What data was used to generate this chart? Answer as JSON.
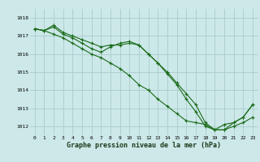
{
  "title": "Graphe pression niveau de la mer (hPa)",
  "bg_color": "#cce8e8",
  "grid_color": "#aacccc",
  "line_color": "#1a6b1a",
  "marker_color": "#1a6b1a",
  "xlim": [
    -0.5,
    23.5
  ],
  "ylim": [
    1011.5,
    1018.5
  ],
  "yticks": [
    1012,
    1013,
    1014,
    1015,
    1016,
    1017,
    1018
  ],
  "xticks": [
    0,
    1,
    2,
    3,
    4,
    5,
    6,
    7,
    8,
    9,
    10,
    11,
    12,
    13,
    14,
    15,
    16,
    17,
    18,
    19,
    20,
    21,
    22,
    23
  ],
  "series": [
    [
      1017.4,
      1017.3,
      1017.6,
      1017.2,
      1017.0,
      1016.8,
      1016.6,
      1016.4,
      1016.5,
      1016.5,
      1016.6,
      1016.5,
      1016.0,
      1015.5,
      1015.0,
      1014.4,
      1013.8,
      1013.2,
      1012.2,
      1011.8,
      1012.1,
      1012.2,
      1012.5,
      1013.2
    ],
    [
      1017.4,
      1017.3,
      1017.5,
      1017.1,
      1016.9,
      1016.6,
      1016.3,
      1016.1,
      1016.4,
      1016.6,
      1016.7,
      1016.5,
      1016.0,
      1015.5,
      1014.9,
      1014.3,
      1013.5,
      1012.8,
      1012.0,
      1011.8,
      1011.8,
      1012.2,
      1012.5,
      1013.2
    ],
    [
      1017.4,
      1017.3,
      1017.1,
      1016.9,
      1016.6,
      1016.3,
      1016.0,
      1015.8,
      1015.5,
      1015.2,
      1014.8,
      1014.3,
      1014.0,
      1013.5,
      1013.1,
      1012.7,
      1012.3,
      1012.2,
      1012.1,
      1011.8,
      1011.8,
      1012.0,
      1012.2,
      1012.5
    ]
  ],
  "tick_fontsize": 4.5,
  "label_fontsize": 6.0
}
